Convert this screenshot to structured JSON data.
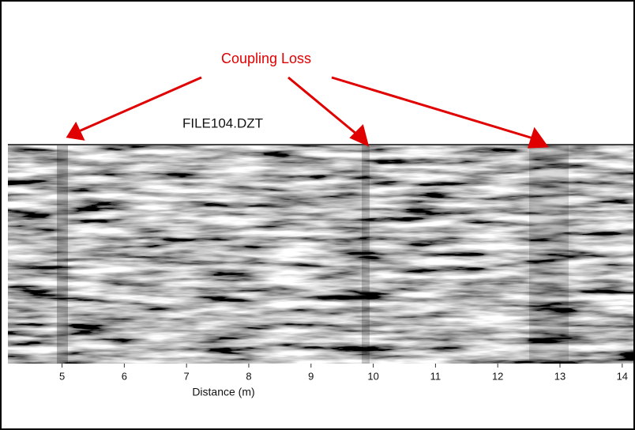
{
  "chart_data": {
    "type": "radargram",
    "title": "FILE104.DZT",
    "annotation": "Coupling Loss",
    "x_label": "Distance (m)",
    "xlim": [
      4.13,
      14.18
    ],
    "xticks": [
      5,
      6,
      7,
      8,
      9,
      10,
      11,
      12,
      13,
      14
    ]
  }
}
